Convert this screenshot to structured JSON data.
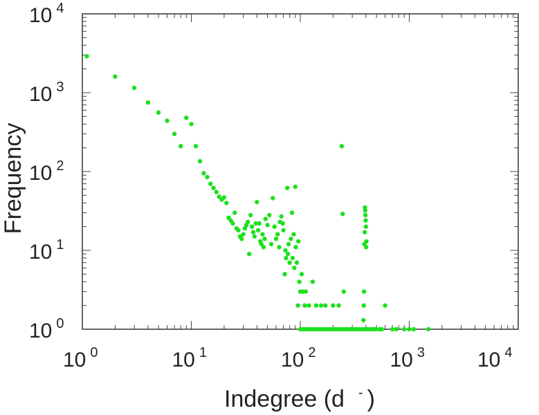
{
  "chart_data": {
    "type": "scatter",
    "title": "",
    "xlabel": "Indegree (d",
    "xlabel_sup": "-",
    "xlabel_close": ")",
    "ylabel": "Frequency",
    "x_scale": "log",
    "y_scale": "log",
    "xlim": [
      1,
      10000
    ],
    "ylim": [
      1,
      10000
    ],
    "grid": false,
    "legend": "none",
    "point_color": "#1ee01e",
    "x_ticks": [
      {
        "base": "10",
        "exp": "0",
        "value": 1
      },
      {
        "base": "10",
        "exp": "1",
        "value": 10
      },
      {
        "base": "10",
        "exp": "2",
        "value": 100
      },
      {
        "base": "10",
        "exp": "3",
        "value": 1000
      },
      {
        "base": "10",
        "exp": "4",
        "value": 10000
      }
    ],
    "y_ticks": [
      {
        "base": "10",
        "exp": "0",
        "value": 1
      },
      {
        "base": "10",
        "exp": "1",
        "value": 10
      },
      {
        "base": "10",
        "exp": "2",
        "value": 100
      },
      {
        "base": "10",
        "exp": "3",
        "value": 1000
      },
      {
        "base": "10",
        "exp": "4",
        "value": 10000
      }
    ],
    "points": [
      [
        1.1,
        2900
      ],
      [
        2,
        1600
      ],
      [
        3,
        1150
      ],
      [
        4,
        750
      ],
      [
        5,
        560
      ],
      [
        6,
        440
      ],
      [
        7,
        300
      ],
      [
        8,
        210
      ],
      [
        9,
        480
      ],
      [
        10,
        400
      ],
      [
        11,
        210
      ],
      [
        12,
        135
      ],
      [
        13,
        95
      ],
      [
        14,
        85
      ],
      [
        15,
        70
      ],
      [
        16,
        62
      ],
      [
        17,
        55
      ],
      [
        18,
        48
      ],
      [
        19,
        44
      ],
      [
        20,
        47
      ],
      [
        21,
        40
      ],
      [
        22,
        26
      ],
      [
        23,
        24
      ],
      [
        24,
        22
      ],
      [
        25,
        30
      ],
      [
        26,
        19
      ],
      [
        27,
        18
      ],
      [
        28,
        15
      ],
      [
        29,
        14
      ],
      [
        30,
        16
      ],
      [
        31,
        19
      ],
      [
        32,
        21
      ],
      [
        33,
        23
      ],
      [
        34,
        9
      ],
      [
        35,
        28
      ],
      [
        36,
        20
      ],
      [
        37,
        17
      ],
      [
        38,
        15
      ],
      [
        39,
        22
      ],
      [
        40,
        41
      ],
      [
        41,
        18
      ],
      [
        42,
        22
      ],
      [
        43,
        13
      ],
      [
        44,
        12
      ],
      [
        45,
        16
      ],
      [
        46,
        11
      ],
      [
        47,
        14
      ],
      [
        48,
        25
      ],
      [
        50,
        21
      ],
      [
        52,
        28
      ],
      [
        54,
        12
      ],
      [
        56,
        46
      ],
      [
        58,
        20
      ],
      [
        60,
        14
      ],
      [
        62,
        16
      ],
      [
        64,
        11
      ],
      [
        65,
        23
      ],
      [
        67,
        27
      ],
      [
        69,
        22
      ],
      [
        70,
        18
      ],
      [
        72,
        5
      ],
      [
        73,
        10
      ],
      [
        74,
        8
      ],
      [
        76,
        62
      ],
      [
        77,
        9
      ],
      [
        78,
        12
      ],
      [
        80,
        7
      ],
      [
        82,
        14
      ],
      [
        84,
        30
      ],
      [
        85,
        8
      ],
      [
        87,
        16
      ],
      [
        88,
        6
      ],
      [
        90,
        64
      ],
      [
        91,
        11
      ],
      [
        93,
        7
      ],
      [
        95,
        2
      ],
      [
        96,
        13
      ],
      [
        98,
        4
      ],
      [
        100,
        3
      ],
      [
        103,
        5
      ],
      [
        105,
        3
      ],
      [
        110,
        2
      ],
      [
        112,
        3
      ],
      [
        120,
        2
      ],
      [
        130,
        4
      ],
      [
        140,
        2
      ],
      [
        155,
        2
      ],
      [
        170,
        2
      ],
      [
        200,
        2
      ],
      [
        225,
        2
      ],
      [
        240,
        210
      ],
      [
        245,
        29
      ],
      [
        250,
        3
      ],
      [
        380,
        1.3
      ],
      [
        382,
        2
      ],
      [
        385,
        3
      ],
      [
        387,
        12
      ],
      [
        390,
        17
      ],
      [
        392,
        35
      ],
      [
        394,
        32
      ],
      [
        396,
        28
      ],
      [
        398,
        24
      ],
      [
        400,
        20
      ],
      [
        402,
        11
      ],
      [
        404,
        13
      ],
      [
        600,
        2
      ],
      [
        100,
        1
      ],
      [
        106,
        1
      ],
      [
        112,
        1
      ],
      [
        118,
        1
      ],
      [
        125,
        1
      ],
      [
        132,
        1
      ],
      [
        140,
        1
      ],
      [
        148,
        1
      ],
      [
        157,
        1
      ],
      [
        166,
        1
      ],
      [
        176,
        1
      ],
      [
        186,
        1
      ],
      [
        197,
        1
      ],
      [
        209,
        1
      ],
      [
        221,
        1
      ],
      [
        234,
        1
      ],
      [
        248,
        1
      ],
      [
        262,
        1
      ],
      [
        278,
        1
      ],
      [
        294,
        1
      ],
      [
        311,
        1
      ],
      [
        330,
        1
      ],
      [
        349,
        1
      ],
      [
        370,
        1
      ],
      [
        392,
        1
      ],
      [
        415,
        1
      ],
      [
        440,
        1
      ],
      [
        466,
        1
      ],
      [
        495,
        1
      ],
      [
        530,
        1
      ],
      [
        560,
        1
      ],
      [
        700,
        1
      ],
      [
        760,
        1
      ],
      [
        900,
        1
      ],
      [
        1000,
        1
      ],
      [
        1100,
        1
      ],
      [
        1500,
        1
      ]
    ]
  }
}
